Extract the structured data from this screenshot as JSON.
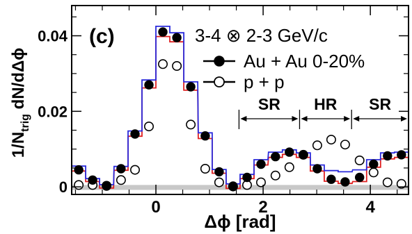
{
  "chart_data": {
    "type": "scatter",
    "panel_label": "(c)",
    "title_line1": "3-4 ⊗ 2-3 GeV/c",
    "xlabel": "Δϕ [rad]",
    "ylabel_main": "1/N",
    "ylabel_sub": "trig",
    "ylabel_tail": " dN/dΔϕ",
    "xlim": [
      -1.571,
      4.712
    ],
    "ylim": [
      -0.002,
      0.048
    ],
    "xticks": [
      0,
      2,
      4
    ],
    "xtick_labels": [
      "0",
      "2",
      "4"
    ],
    "yticks": [
      0,
      0.02,
      0.04
    ],
    "ytick_labels": [
      "0",
      "0.02",
      "0.04"
    ],
    "x": [
      -1.44,
      -1.18,
      -0.92,
      -0.65,
      -0.39,
      -0.13,
      0.13,
      0.39,
      0.65,
      0.92,
      1.18,
      1.44,
      1.7,
      1.96,
      2.23,
      2.49,
      2.75,
      3.01,
      3.27,
      3.53,
      3.8,
      4.06,
      4.32,
      4.58
    ],
    "series": [
      {
        "name": "Au + Au 0-20%",
        "marker": "filled-circle",
        "color": "#000000",
        "values": [
          0.0045,
          0.0018,
          0.0002,
          0.0048,
          0.014,
          0.027,
          0.041,
          0.0395,
          0.0265,
          0.0135,
          0.004,
          0.0002,
          0.0025,
          0.006,
          0.008,
          0.0092,
          0.0085,
          0.0048,
          0.002,
          0.0013,
          0.0025,
          0.006,
          0.0082,
          0.0085
        ]
      },
      {
        "name": "p + p",
        "marker": "open-circle",
        "color": "#000000",
        "values": [
          0.0005,
          0.0005,
          0.0003,
          0.0018,
          0.0045,
          0.016,
          0.0325,
          0.032,
          0.0165,
          0.0048,
          0.0012,
          0.0001,
          0.0005,
          0.0012,
          0.003,
          0.0052,
          0.0085,
          0.011,
          0.0125,
          0.0112,
          0.007,
          0.0038,
          0.0012,
          0.0008
        ]
      }
    ],
    "band_upper": [
      0.0055,
      0.0022,
      0.0006,
      0.0054,
      0.0148,
      0.0283,
      0.0425,
      0.0408,
      0.0278,
      0.0143,
      0.0046,
      0.0008,
      0.0033,
      0.0072,
      0.0092,
      0.0098,
      0.009,
      0.0058,
      0.0043,
      0.004,
      0.0045,
      0.0072,
      0.009,
      0.0092
    ],
    "band_lower": [
      0.0042,
      0.0014,
      -0.0003,
      0.0044,
      0.0134,
      0.0262,
      0.0398,
      0.0384,
      0.0256,
      0.0128,
      0.0036,
      -0.0004,
      0.0022,
      0.0058,
      0.0078,
      0.0086,
      0.0078,
      0.0042,
      0.0015,
      0.0009,
      0.0014,
      0.0052,
      0.0074,
      0.0078
    ],
    "band_upper_color": "#2a2adc",
    "band_lower_color": "#e02020",
    "zero_band_color": "#c8c8c8",
    "regions": [
      {
        "label": "SR",
        "range": [
          1.55,
          2.68
        ]
      },
      {
        "label": "HR",
        "range": [
          2.68,
          3.65
        ]
      },
      {
        "label": "SR",
        "range": [
          3.65,
          4.712
        ]
      }
    ],
    "legend_position": "top-right"
  }
}
